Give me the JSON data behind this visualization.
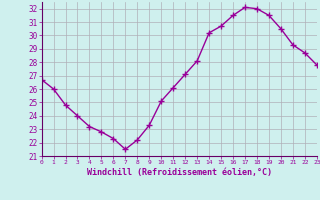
{
  "x": [
    0,
    1,
    2,
    3,
    4,
    5,
    6,
    7,
    8,
    9,
    10,
    11,
    12,
    13,
    14,
    15,
    16,
    17,
    18,
    19,
    20,
    21,
    22,
    23
  ],
  "y": [
    26.7,
    26.0,
    24.8,
    24.0,
    23.2,
    22.8,
    22.3,
    21.5,
    22.2,
    23.3,
    25.1,
    26.1,
    27.1,
    28.1,
    30.2,
    30.7,
    31.5,
    32.1,
    32.0,
    31.5,
    30.5,
    29.3,
    28.7,
    27.8
  ],
  "xlim": [
    0,
    23
  ],
  "ylim": [
    21,
    32.5
  ],
  "yticks": [
    21,
    22,
    23,
    24,
    25,
    26,
    27,
    28,
    29,
    30,
    31,
    32
  ],
  "xticks": [
    0,
    1,
    2,
    3,
    4,
    5,
    6,
    7,
    8,
    9,
    10,
    11,
    12,
    13,
    14,
    15,
    16,
    17,
    18,
    19,
    20,
    21,
    22,
    23
  ],
  "xlabel": "Windchill (Refroidissement éolien,°C)",
  "line_color": "#990099",
  "marker": "+",
  "marker_size": 4,
  "line_width": 1.0,
  "bg_color": "#cff0ee",
  "grid_color": "#b0b0b8",
  "tick_color": "#990099",
  "label_color": "#990099",
  "font_family": "monospace",
  "spine_color": "#660066"
}
